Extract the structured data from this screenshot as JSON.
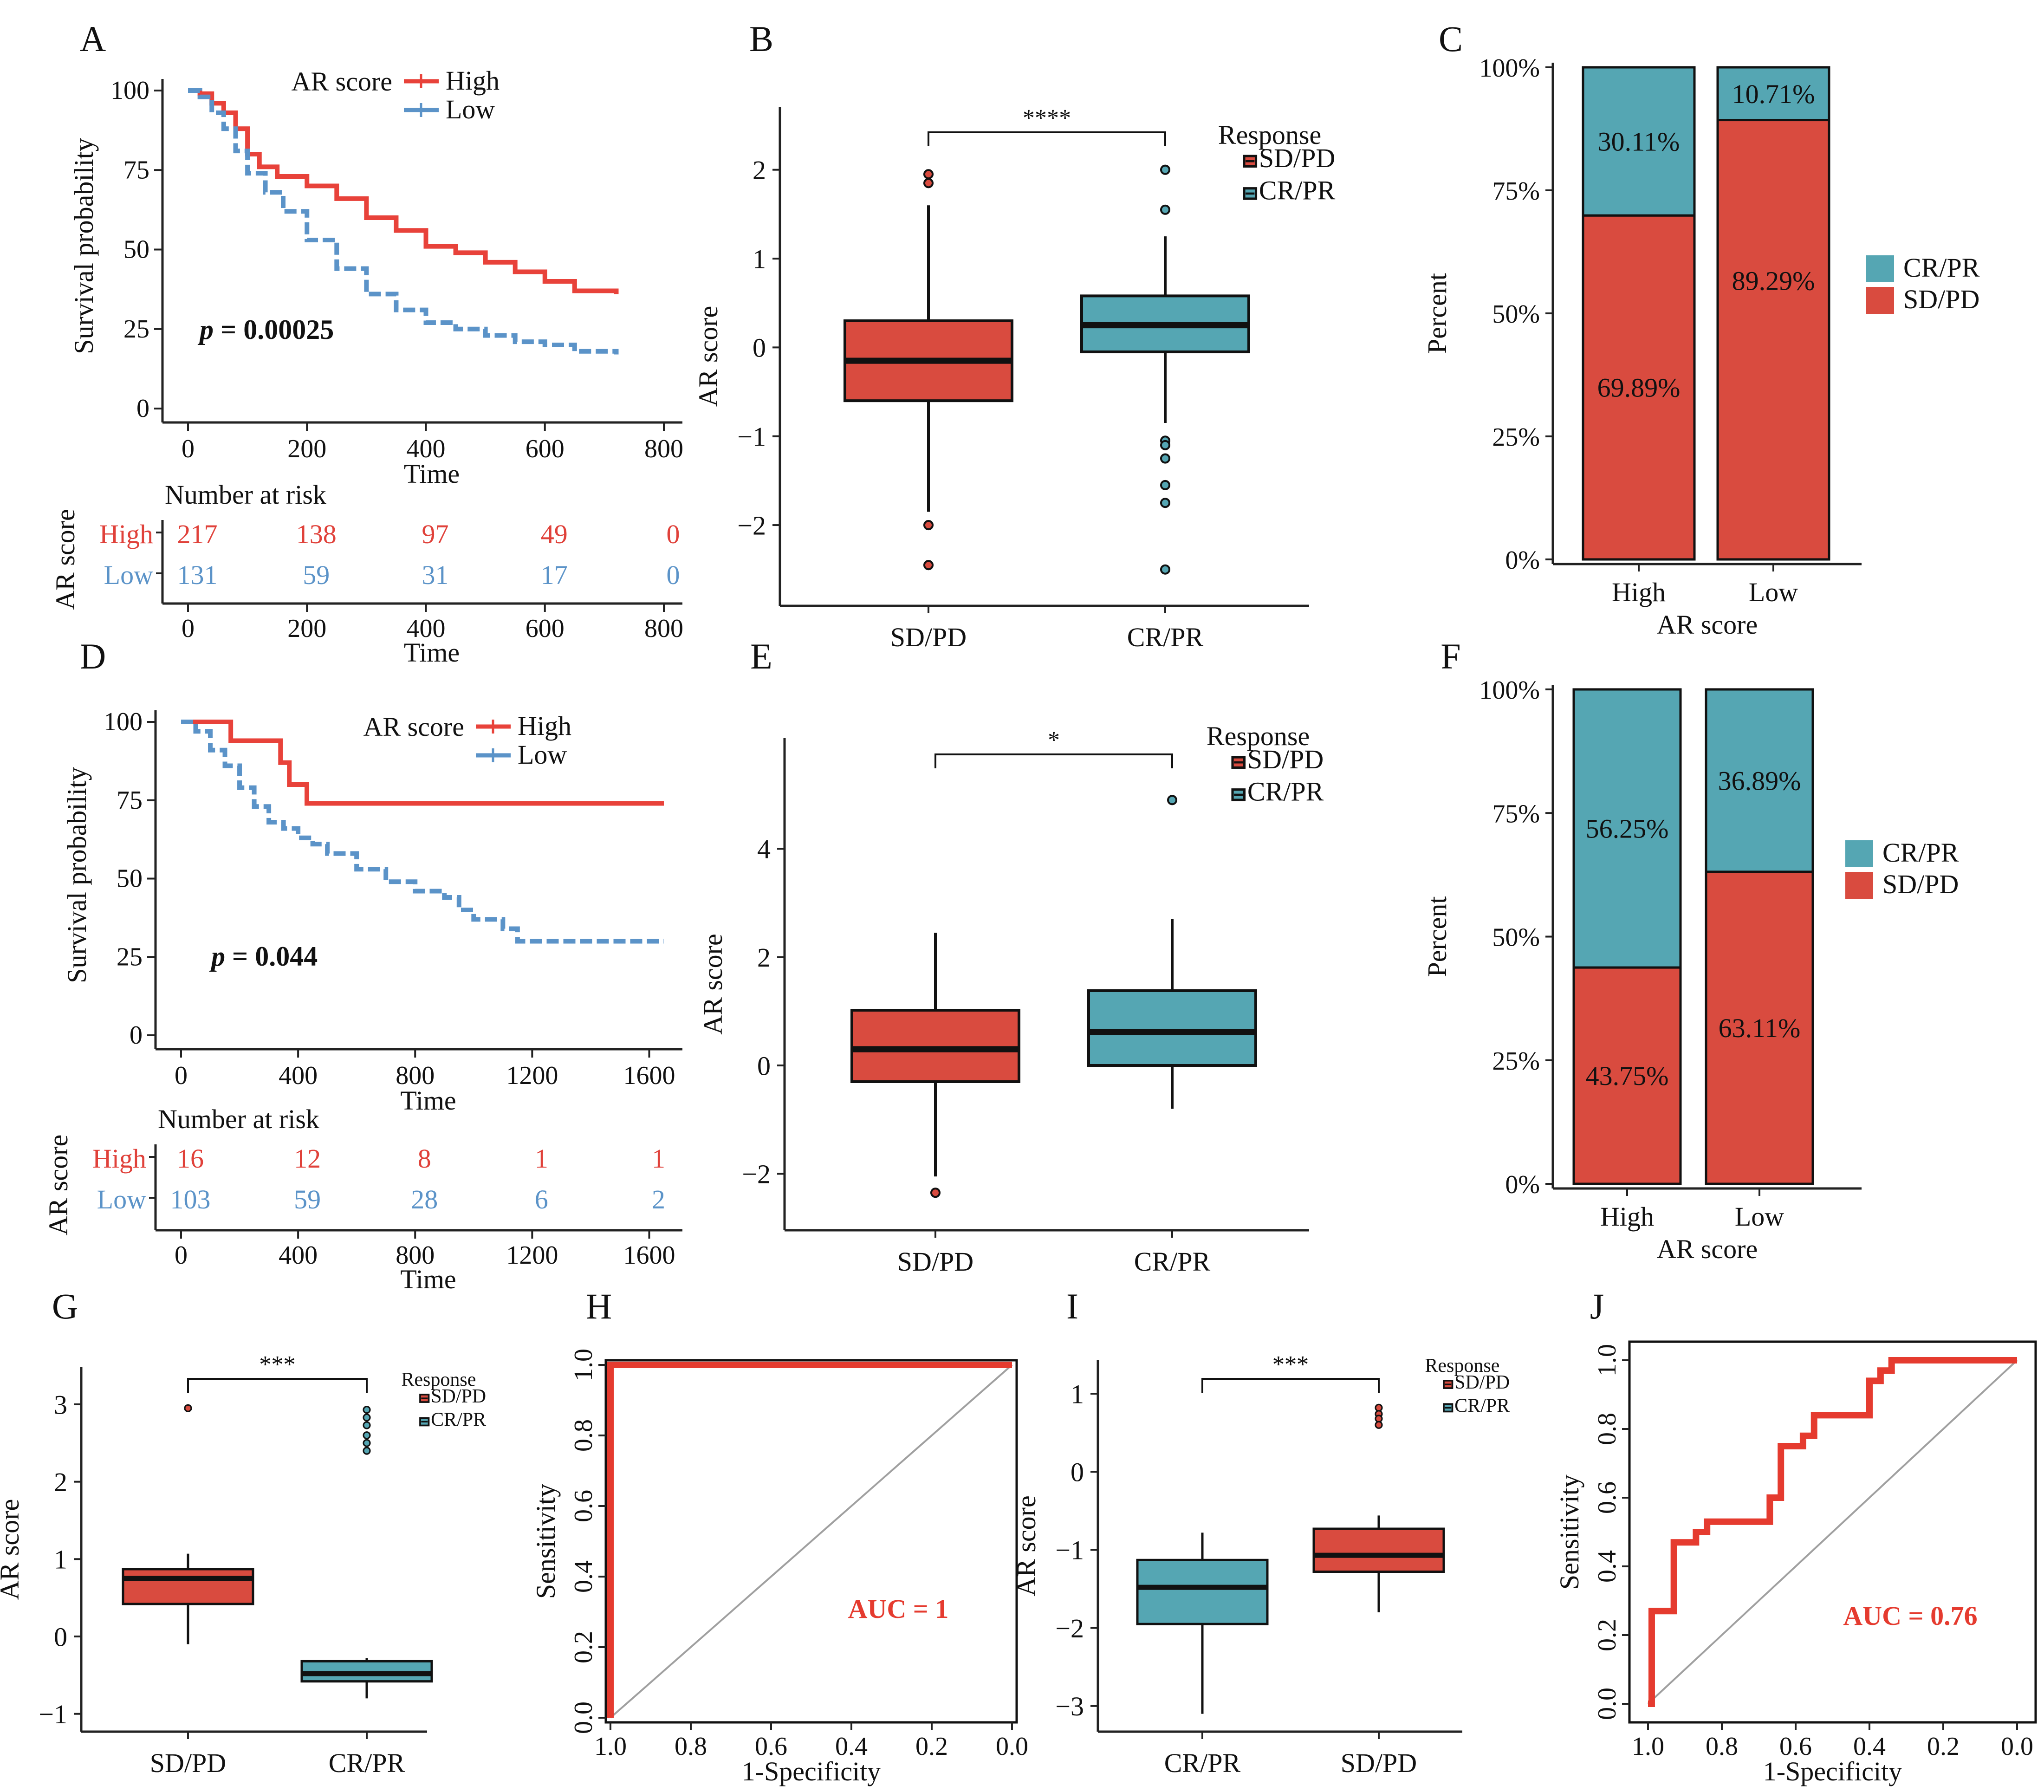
{
  "colors": {
    "red": "#d94b3f",
    "teal": "#55a6b3",
    "line_red": "#e8423a",
    "line_blue": "#5b93c8",
    "risk_red": "#e0413a",
    "risk_blue": "#5b93c8",
    "auc_red": "#e53b2f",
    "diag": "#a0a0a0"
  },
  "chart_data": [
    {
      "panel": "A",
      "type": "km",
      "ylabel": "Survival probability",
      "xlabel": "Time",
      "legend_title": "AR score",
      "legend": [
        "High",
        "Low"
      ],
      "pvalue_prefix": "p",
      "pvalue_value": " = 0.00025",
      "xlim": [
        0,
        800
      ],
      "ylim": [
        0,
        100
      ],
      "xticks": [
        "0",
        "200",
        "400",
        "600",
        "800"
      ],
      "yticks": [
        "0",
        "25",
        "50",
        "75",
        "100"
      ],
      "series": [
        {
          "name": "High",
          "points": [
            [
              0,
              100
            ],
            [
              20,
              99
            ],
            [
              40,
              96
            ],
            [
              60,
              93
            ],
            [
              80,
              88
            ],
            [
              100,
              80
            ],
            [
              120,
              76
            ],
            [
              150,
              73
            ],
            [
              200,
              70
            ],
            [
              250,
              66
            ],
            [
              300,
              60
            ],
            [
              350,
              56
            ],
            [
              400,
              51
            ],
            [
              450,
              49
            ],
            [
              500,
              46
            ],
            [
              550,
              43
            ],
            [
              600,
              40
            ],
            [
              650,
              37
            ],
            [
              720,
              36
            ]
          ]
        },
        {
          "name": "Low",
          "points": [
            [
              0,
              100
            ],
            [
              20,
              98
            ],
            [
              40,
              93
            ],
            [
              60,
              88
            ],
            [
              80,
              81
            ],
            [
              100,
              74
            ],
            [
              130,
              68
            ],
            [
              160,
              62
            ],
            [
              200,
              53
            ],
            [
              250,
              44
            ],
            [
              300,
              36
            ],
            [
              350,
              31
            ],
            [
              400,
              27
            ],
            [
              450,
              25
            ],
            [
              500,
              23
            ],
            [
              550,
              21
            ],
            [
              600,
              20
            ],
            [
              650,
              18
            ],
            [
              720,
              17
            ]
          ]
        }
      ],
      "risk_title": "Number at risk",
      "risk_label": "AR score",
      "risk_rows": [
        {
          "name": "High",
          "values": [
            "217",
            "138",
            "97",
            "49",
            "0"
          ]
        },
        {
          "name": "Low",
          "values": [
            "131",
            "59",
            "31",
            "17",
            "0"
          ]
        }
      ],
      "risk_x": [
        0,
        200,
        400,
        600,
        800
      ]
    },
    {
      "panel": "B",
      "type": "box",
      "ylabel": "AR score",
      "categories": [
        "SD/PD",
        "CR/PR"
      ],
      "ylim": [
        -2.7,
        2.5
      ],
      "yticks": [
        "−2",
        "−1",
        "0",
        "1",
        "2"
      ],
      "ytick_values": [
        -2,
        -1,
        0,
        1,
        2
      ],
      "legend_title": "Response",
      "legend": [
        "SD/PD",
        "CR/PR"
      ],
      "significance": "****",
      "boxes": [
        {
          "name": "SD/PD",
          "whisker_low": -1.85,
          "q1": -0.6,
          "median": -0.15,
          "q3": 0.3,
          "whisker_high": 1.6,
          "outliers": [
            1.85,
            1.95,
            -2.0,
            -2.45
          ]
        },
        {
          "name": "CR/PR",
          "whisker_low": -0.85,
          "q1": -0.05,
          "median": 0.25,
          "q3": 0.58,
          "whisker_high": 1.25,
          "outliers": [
            2.0,
            1.55,
            -1.05,
            -1.1,
            -1.25,
            -1.55,
            -1.75,
            -2.5
          ]
        }
      ]
    },
    {
      "panel": "C",
      "type": "stacked_bar",
      "ylabel": "Percent",
      "xlabel": "AR score",
      "categories": [
        "High",
        "Low"
      ],
      "yticks": [
        "0%",
        "25%",
        "50%",
        "75%",
        "100%"
      ],
      "legend": [
        "CR/PR",
        "SD/PD"
      ],
      "series": [
        {
          "name": "SD/PD",
          "values": [
            69.89,
            89.29
          ],
          "labels": [
            "69.89%",
            "89.29%"
          ]
        },
        {
          "name": "CR/PR",
          "values": [
            30.11,
            10.71
          ],
          "labels": [
            "30.11%",
            "10.71%"
          ]
        }
      ]
    },
    {
      "panel": "D",
      "type": "km",
      "ylabel": "Survival probability",
      "xlabel": "Time",
      "legend_title": "AR score",
      "legend": [
        "High",
        "Low"
      ],
      "pvalue_prefix": "p",
      "pvalue_value": " = 0.044",
      "xlim": [
        0,
        1650
      ],
      "ylim": [
        0,
        100
      ],
      "xticks": [
        "0",
        "400",
        "800",
        "1200",
        "1600"
      ],
      "yticks": [
        "0",
        "25",
        "50",
        "75",
        "100"
      ],
      "series": [
        {
          "name": "High",
          "points": [
            [
              0,
              100
            ],
            [
              170,
              100
            ],
            [
              170,
              94
            ],
            [
              340,
              94
            ],
            [
              340,
              87
            ],
            [
              370,
              87
            ],
            [
              370,
              80
            ],
            [
              430,
              80
            ],
            [
              430,
              74
            ],
            [
              1650,
              74
            ]
          ]
        },
        {
          "name": "Low",
          "points": [
            [
              0,
              100
            ],
            [
              50,
              97
            ],
            [
              100,
              91
            ],
            [
              150,
              86
            ],
            [
              200,
              79
            ],
            [
              250,
              73
            ],
            [
              300,
              68
            ],
            [
              350,
              66
            ],
            [
              400,
              63
            ],
            [
              450,
              61
            ],
            [
              500,
              58
            ],
            [
              600,
              53
            ],
            [
              700,
              49
            ],
            [
              800,
              46
            ],
            [
              900,
              44
            ],
            [
              950,
              40
            ],
            [
              1000,
              37
            ],
            [
              1100,
              34
            ],
            [
              1150,
              30
            ],
            [
              1650,
              30
            ]
          ]
        }
      ],
      "risk_title": "Number at risk",
      "risk_label": "AR score",
      "risk_rows": [
        {
          "name": "High",
          "values": [
            "16",
            "12",
            "8",
            "1",
            "1"
          ]
        },
        {
          "name": "Low",
          "values": [
            "103",
            "59",
            "28",
            "6",
            "2"
          ]
        }
      ],
      "risk_x": [
        0,
        400,
        800,
        1200,
        1600
      ]
    },
    {
      "panel": "E",
      "type": "box",
      "ylabel": "AR score",
      "categories": [
        "SD/PD",
        "CR/PR"
      ],
      "ylim": [
        -2.7,
        5.7
      ],
      "yticks": [
        "−2",
        "0",
        "2",
        "4"
      ],
      "ytick_values": [
        -2,
        0,
        2,
        4
      ],
      "legend_title": "Response",
      "legend": [
        "SD/PD",
        "CR/PR"
      ],
      "significance": "*",
      "boxes": [
        {
          "name": "SD/PD",
          "whisker_low": -2.05,
          "q1": -0.3,
          "median": 0.3,
          "q3": 1.02,
          "whisker_high": 2.45,
          "outliers": [
            -2.35
          ]
        },
        {
          "name": "CR/PR",
          "whisker_low": -0.8,
          "q1": 0.0,
          "median": 0.62,
          "q3": 1.38,
          "whisker_high": 2.7,
          "outliers": [
            4.9
          ]
        }
      ]
    },
    {
      "panel": "F",
      "type": "stacked_bar",
      "ylabel": "Percent",
      "xlabel": "AR score",
      "categories": [
        "High",
        "Low"
      ],
      "yticks": [
        "0%",
        "25%",
        "50%",
        "75%",
        "100%"
      ],
      "legend": [
        "CR/PR",
        "SD/PD"
      ],
      "series": [
        {
          "name": "SD/PD",
          "values": [
            43.75,
            63.11
          ],
          "labels": [
            "43.75%",
            "63.11%"
          ]
        },
        {
          "name": "CR/PR",
          "values": [
            56.25,
            36.89
          ],
          "labels": [
            "56.25%",
            "36.89%"
          ]
        }
      ]
    },
    {
      "panel": "G",
      "type": "box",
      "ylabel": "AR score",
      "categories": [
        "SD/PD",
        "CR/PR"
      ],
      "ylim": [
        -1.05,
        3.3
      ],
      "yticks": [
        "−1",
        "0",
        "1",
        "2",
        "3"
      ],
      "ytick_values": [
        -1,
        0,
        1,
        2,
        3
      ],
      "legend_title": "Response",
      "legend": [
        "SD/PD",
        "CR/PR"
      ],
      "significance": "***",
      "boxes": [
        {
          "name": "SD/PD",
          "whisker_low": -0.1,
          "q1": 0.42,
          "median": 0.75,
          "q3": 0.87,
          "whisker_high": 1.07,
          "outliers": [
            2.95
          ]
        },
        {
          "name": "CR/PR",
          "whisker_low": -0.8,
          "q1": -0.58,
          "median": -0.48,
          "q3": -0.32,
          "whisker_high": -0.28,
          "outliers": [
            2.93,
            2.83,
            2.73,
            2.6,
            2.5,
            2.4
          ]
        }
      ]
    },
    {
      "panel": "H",
      "type": "roc",
      "ylabel": "Sensitivity",
      "xlabel": "1-Specificity",
      "xticks": [
        "1.0",
        "0.8",
        "0.6",
        "0.4",
        "0.2",
        "0.0"
      ],
      "yticks": [
        "0.0",
        "0.2",
        "0.4",
        "0.6",
        "0.8",
        "1.0"
      ],
      "auc": "AUC = 1",
      "points": [
        [
          1.0,
          0.0
        ],
        [
          1.0,
          1.0
        ],
        [
          0.0,
          1.0
        ]
      ]
    },
    {
      "panel": "I",
      "type": "box",
      "ylabel": "AR score",
      "categories": [
        "CR/PR",
        "SD/PD"
      ],
      "ylim": [
        -3.15,
        1.25
      ],
      "yticks": [
        "−3",
        "−2",
        "−1",
        "0",
        "1"
      ],
      "ytick_values": [
        -3,
        -2,
        -1,
        0,
        1
      ],
      "legend_title": "Response",
      "legend": [
        "SD/PD",
        "CR/PR"
      ],
      "significance": "***",
      "boxes": [
        {
          "name": "CR/PR",
          "whisker_low": -3.1,
          "q1": -1.95,
          "median": -1.48,
          "q3": -1.13,
          "whisker_high": -0.78,
          "outliers": []
        },
        {
          "name": "SD/PD",
          "whisker_low": -1.8,
          "q1": -1.28,
          "median": -1.07,
          "q3": -0.73,
          "whisker_high": -0.56,
          "outliers": [
            0.82,
            0.74,
            0.68,
            0.6
          ]
        }
      ]
    },
    {
      "panel": "J",
      "type": "roc",
      "ylabel": "Sensitivity",
      "xlabel": "1-Specificity",
      "xticks": [
        "1.0",
        "0.8",
        "0.6",
        "0.4",
        "0.2",
        "0.0"
      ],
      "yticks": [
        "0.0",
        "0.2",
        "0.4",
        "0.6",
        "0.8",
        "1.0"
      ],
      "auc": "AUC = 0.76",
      "points": [
        [
          1.0,
          0.0
        ],
        [
          0.99,
          0.0
        ],
        [
          0.99,
          0.27
        ],
        [
          0.93,
          0.27
        ],
        [
          0.93,
          0.47
        ],
        [
          0.87,
          0.47
        ],
        [
          0.87,
          0.5
        ],
        [
          0.84,
          0.5
        ],
        [
          0.84,
          0.53
        ],
        [
          0.67,
          0.53
        ],
        [
          0.67,
          0.6
        ],
        [
          0.64,
          0.6
        ],
        [
          0.64,
          0.75
        ],
        [
          0.58,
          0.75
        ],
        [
          0.58,
          0.78
        ],
        [
          0.55,
          0.78
        ],
        [
          0.55,
          0.84
        ],
        [
          0.4,
          0.84
        ],
        [
          0.4,
          0.94
        ],
        [
          0.37,
          0.94
        ],
        [
          0.37,
          0.97
        ],
        [
          0.34,
          0.97
        ],
        [
          0.34,
          1.0
        ],
        [
          0.0,
          1.0
        ]
      ]
    }
  ]
}
